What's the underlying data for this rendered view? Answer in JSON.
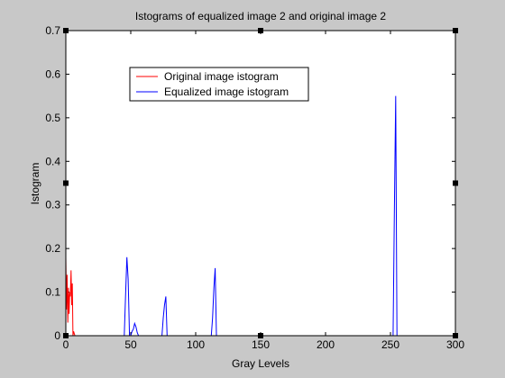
{
  "chart_data": {
    "type": "line",
    "title": "Istograms of equalized image 2 and original image 2",
    "xlabel": "Gray Levels",
    "ylabel": "Istogram",
    "xlim": [
      0,
      300
    ],
    "ylim": [
      0,
      0.7
    ],
    "xticks": [
      0,
      50,
      100,
      150,
      200,
      250,
      300
    ],
    "yticks": [
      0,
      0.1,
      0.2,
      0.3,
      0.4,
      0.5,
      0.6,
      0.7
    ],
    "xtick_labels": [
      "0",
      "50",
      "100",
      "150",
      "200",
      "250",
      "300"
    ],
    "ytick_labels": [
      "0",
      "0.1",
      "0.2",
      "0.3",
      "0.4",
      "0.5",
      "0.6",
      "0.7"
    ],
    "grid": false,
    "legend_position": "upper-left-inside",
    "series": [
      {
        "name": "Original image istogram",
        "color": "#ff0000",
        "x": [
          0,
          0.5,
          1,
          1.5,
          2,
          2.5,
          3,
          3.5,
          4,
          4.5,
          5,
          5.5,
          6,
          7
        ],
        "y": [
          0.18,
          0.06,
          0.14,
          0.03,
          0.11,
          0.05,
          0.1,
          0.09,
          0.15,
          0.07,
          0.12,
          0.0,
          0.01,
          0.0
        ]
      },
      {
        "name": "Equalized image istogram",
        "color": "#0000ff",
        "x": [
          45,
          46,
          47,
          48,
          49,
          50,
          51,
          52,
          53,
          54,
          55,
          56,
          57,
          74,
          75,
          76,
          77,
          78,
          79,
          112,
          113,
          114,
          115,
          116,
          252,
          253,
          254,
          255,
          256
        ],
        "y": [
          0.0,
          0.09,
          0.18,
          0.13,
          0.0,
          0.0,
          0.01,
          0.015,
          0.028,
          0.02,
          0.007,
          0.0,
          0.0,
          0.0,
          0.04,
          0.07,
          0.09,
          0.0,
          0.0,
          0.0,
          0.04,
          0.11,
          0.155,
          0.0,
          0.0,
          0.28,
          0.55,
          0.0,
          0.0
        ]
      }
    ]
  }
}
